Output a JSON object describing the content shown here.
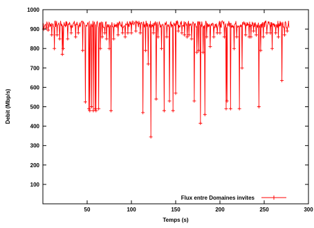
{
  "chart_data": {
    "type": "line",
    "title": "",
    "xlabel": "Temps (s)",
    "ylabel": "Debit (Mbp/s)",
    "xlim": [
      0,
      300
    ],
    "ylim": [
      0,
      1000
    ],
    "xticks": [
      50,
      100,
      150,
      200,
      250,
      300
    ],
    "yticks": [
      100,
      200,
      300,
      400,
      500,
      600,
      700,
      800,
      900,
      1000
    ],
    "grid": false,
    "legend_position": "bottom-right",
    "series": [
      {
        "name": "Flux entre Domaines invites",
        "color": "#ff0000",
        "marker": "plus",
        "baseline": 925,
        "x_start": 0,
        "x_end": 278,
        "x_step": 0.5,
        "dips": [
          [
            1,
            900
          ],
          [
            4,
            905
          ],
          [
            6,
            895
          ],
          [
            10,
            870
          ],
          [
            13,
            800
          ],
          [
            16,
            870
          ],
          [
            19,
            850
          ],
          [
            22,
            770
          ],
          [
            23,
            800
          ],
          [
            28,
            850
          ],
          [
            32,
            880
          ],
          [
            37,
            860
          ],
          [
            40,
            880
          ],
          [
            45,
            790
          ],
          [
            48,
            525
          ],
          [
            52,
            490
          ],
          [
            53,
            480
          ],
          [
            55,
            500
          ],
          [
            57,
            480
          ],
          [
            59,
            490
          ],
          [
            60,
            480
          ],
          [
            63,
            490
          ],
          [
            65,
            800
          ],
          [
            67,
            860
          ],
          [
            70,
            880
          ],
          [
            72,
            850
          ],
          [
            75,
            800
          ],
          [
            77,
            480
          ],
          [
            80,
            850
          ],
          [
            85,
            870
          ],
          [
            90,
            880
          ],
          [
            93,
            860
          ],
          [
            96,
            880
          ],
          [
            100,
            880
          ],
          [
            105,
            890
          ],
          [
            110,
            880
          ],
          [
            113,
            470
          ],
          [
            116,
            790
          ],
          [
            119,
            720
          ],
          [
            122,
            345
          ],
          [
            125,
            880
          ],
          [
            128,
            540
          ],
          [
            130,
            860
          ],
          [
            134,
            800
          ],
          [
            137,
            480
          ],
          [
            140,
            860
          ],
          [
            143,
            530
          ],
          [
            147,
            480
          ],
          [
            150,
            570
          ],
          [
            153,
            890
          ],
          [
            157,
            880
          ],
          [
            160,
            870
          ],
          [
            163,
            860
          ],
          [
            165,
            870
          ],
          [
            168,
            850
          ],
          [
            171,
            530
          ],
          [
            174,
            780
          ],
          [
            176,
            790
          ],
          [
            178,
            415
          ],
          [
            181,
            780
          ],
          [
            183,
            460
          ],
          [
            185,
            860
          ],
          [
            189,
            810
          ],
          [
            193,
            860
          ],
          [
            197,
            880
          ],
          [
            200,
            880
          ],
          [
            205,
            860
          ],
          [
            207,
            490
          ],
          [
            208,
            530
          ],
          [
            212,
            490
          ],
          [
            216,
            800
          ],
          [
            219,
            860
          ],
          [
            222,
            490
          ],
          [
            225,
            700
          ],
          [
            229,
            870
          ],
          [
            233,
            860
          ],
          [
            235,
            860
          ],
          [
            238,
            890
          ],
          [
            241,
            870
          ],
          [
            244,
            500
          ],
          [
            246,
            790
          ],
          [
            249,
            860
          ],
          [
            253,
            880
          ],
          [
            257,
            880
          ],
          [
            259,
            800
          ],
          [
            263,
            880
          ],
          [
            266,
            860
          ],
          [
            270,
            635
          ],
          [
            273,
            870
          ],
          [
            276,
            890
          ]
        ]
      }
    ]
  }
}
